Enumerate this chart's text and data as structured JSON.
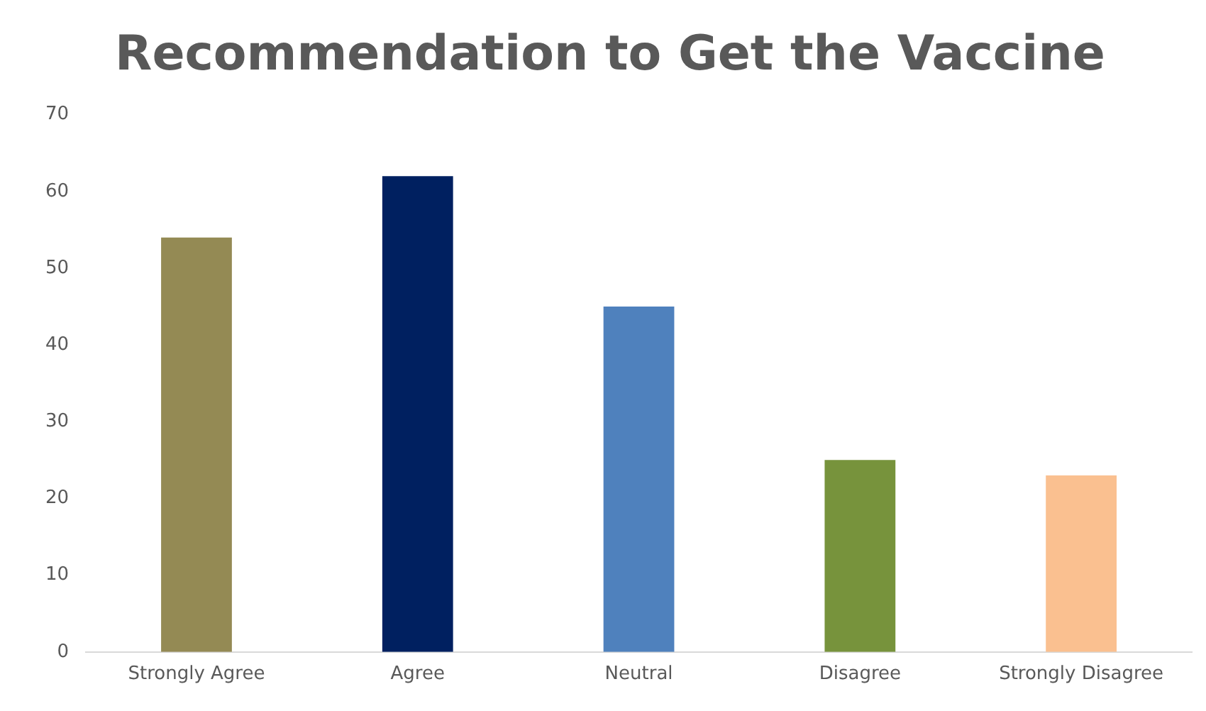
{
  "chart_data": {
    "type": "bar",
    "title": "Recommendation to Get the Vaccine",
    "categories": [
      "Strongly Agree",
      "Agree",
      "Neutral",
      "Disagree",
      "Strongly Disagree"
    ],
    "values": [
      54,
      62,
      45,
      25,
      23
    ],
    "colors": [
      "#948a54",
      "#002060",
      "#4f81bd",
      "#77933c",
      "#fac090"
    ],
    "ylim": [
      0,
      70
    ],
    "yticks": [
      0,
      10,
      20,
      30,
      40,
      50,
      60,
      70
    ],
    "grid": false,
    "legend": false
  }
}
